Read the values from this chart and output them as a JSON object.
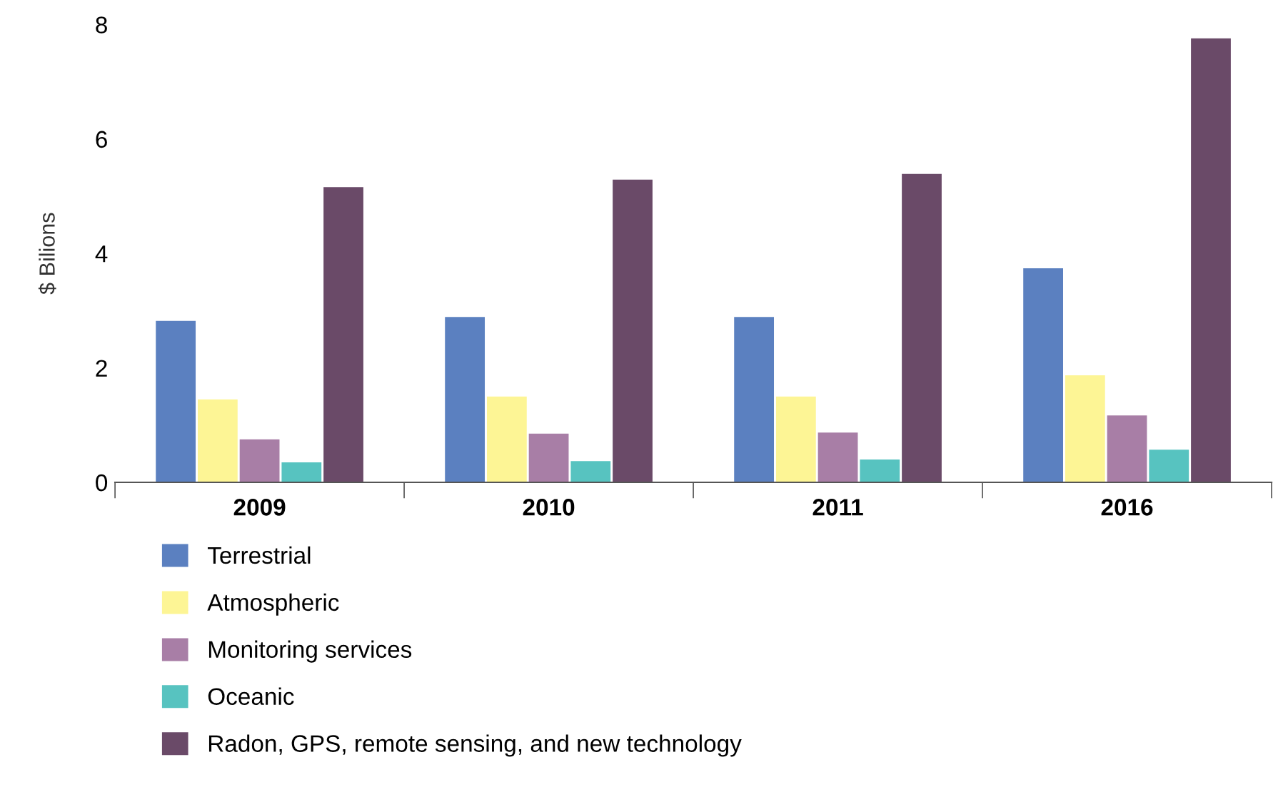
{
  "chart_data": {
    "type": "bar",
    "ylabel": "$ Bilions",
    "categories": [
      "2009",
      "2010",
      "2011",
      "2016"
    ],
    "series": [
      {
        "name": "Terrestrial",
        "color": "#5b80c0",
        "values": [
          2.82,
          2.89,
          2.89,
          3.74
        ]
      },
      {
        "name": "Atmospheric",
        "color": "#fdf595",
        "values": [
          1.45,
          1.5,
          1.5,
          1.87
        ]
      },
      {
        "name": "Monitoring services",
        "color": "#a87ea6",
        "values": [
          0.75,
          0.85,
          0.87,
          1.17
        ]
      },
      {
        "name": "Oceanic",
        "color": "#57c3c0",
        "values": [
          0.35,
          0.37,
          0.4,
          0.57
        ]
      },
      {
        "name": "Radon, GPS, remote sensing, and new technology",
        "color": "#6a4a68",
        "values": [
          5.16,
          5.29,
          5.39,
          7.76
        ]
      }
    ],
    "ylim": [
      0,
      8
    ],
    "yticks": [
      0,
      2,
      4,
      6,
      8
    ],
    "grid": false,
    "legend": "bottom"
  }
}
